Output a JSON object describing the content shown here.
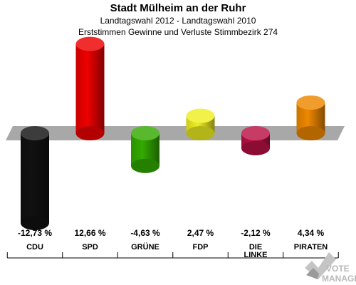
{
  "header": {
    "title": "Stadt Mülheim an der Ruhr",
    "subtitle": "Landtagswahl 2012 - Landtagswahl 2010",
    "description": "Erststimmen Gewinne und Verluste Stimmbezirk 274"
  },
  "chart_data": {
    "type": "bar",
    "categories": [
      "CDU",
      "SPD",
      "GRÜNE",
      "FDP",
      "DIE LINKE",
      "PIRATEN"
    ],
    "values": [
      -12.73,
      12.66,
      -4.63,
      2.47,
      -2.12,
      4.34
    ],
    "value_labels": [
      "-12,73 %",
      "12,66 %",
      "-4,63 %",
      "2,47 %",
      "-2,12 %",
      "4,34 %"
    ],
    "colors": [
      "#111111",
      "#ee0000",
      "#33aa00",
      "#eeee22",
      "#bb1144",
      "#ee8800"
    ],
    "grid": false,
    "legend": "none"
  },
  "watermark": {
    "line1": "VOTE",
    "line2": "MANAGER"
  }
}
